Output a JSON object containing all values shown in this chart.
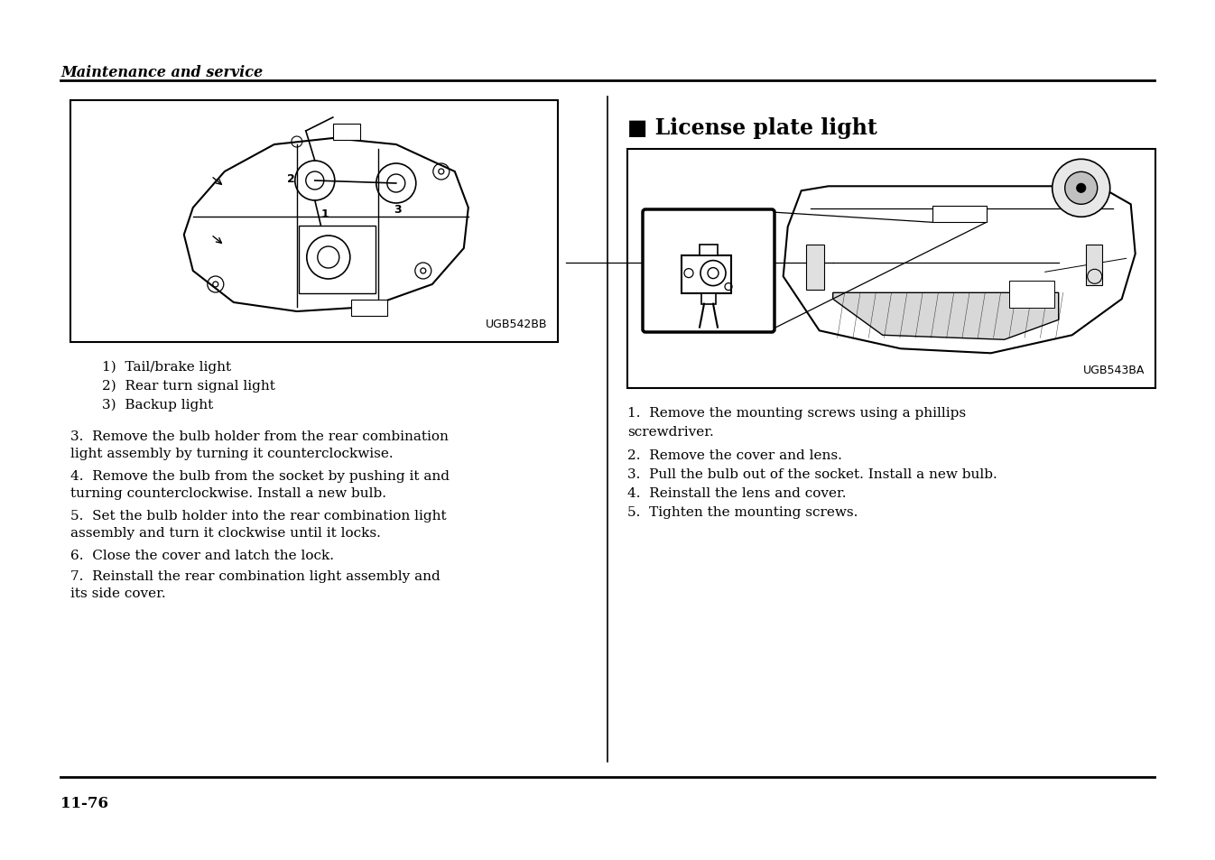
{
  "bg_color": "#ffffff",
  "header_text": "Maintenance and service",
  "footer_text": "11-76",
  "left_image_code": "UGB542BB",
  "right_image_code": "UGB543BA",
  "section_title": "■ License plate light",
  "left_caption_lines": [
    "1)  Tail/brake light",
    "2)  Rear turn signal light",
    "3)  Backup light"
  ],
  "left_body_paragraphs": [
    "3.  Remove the bulb holder from the rear combination\nlight assembly by turning it counterclockwise.",
    "4.  Remove the bulb from the socket by pushing it and\nturning counterclockwise. Install a new bulb.",
    "5.  Set the bulb holder into the rear combination light\nassembly and turn it clockwise until it locks.",
    "6.  Close the cover and latch the lock.",
    "7.  Reinstall the rear combination light assembly and\nits side cover."
  ],
  "right_body_text_line1": "1.  Remove the mounting screws using a phillips",
  "right_body_text_line2": "screwdriver.",
  "right_body_lines": [
    "2.  Remove the cover and lens.",
    "3.  Pull the bulb out of the socket. Install a new bulb.",
    "4.  Reinstall the lens and cover.",
    "5.  Tighten the mounting screws."
  ]
}
